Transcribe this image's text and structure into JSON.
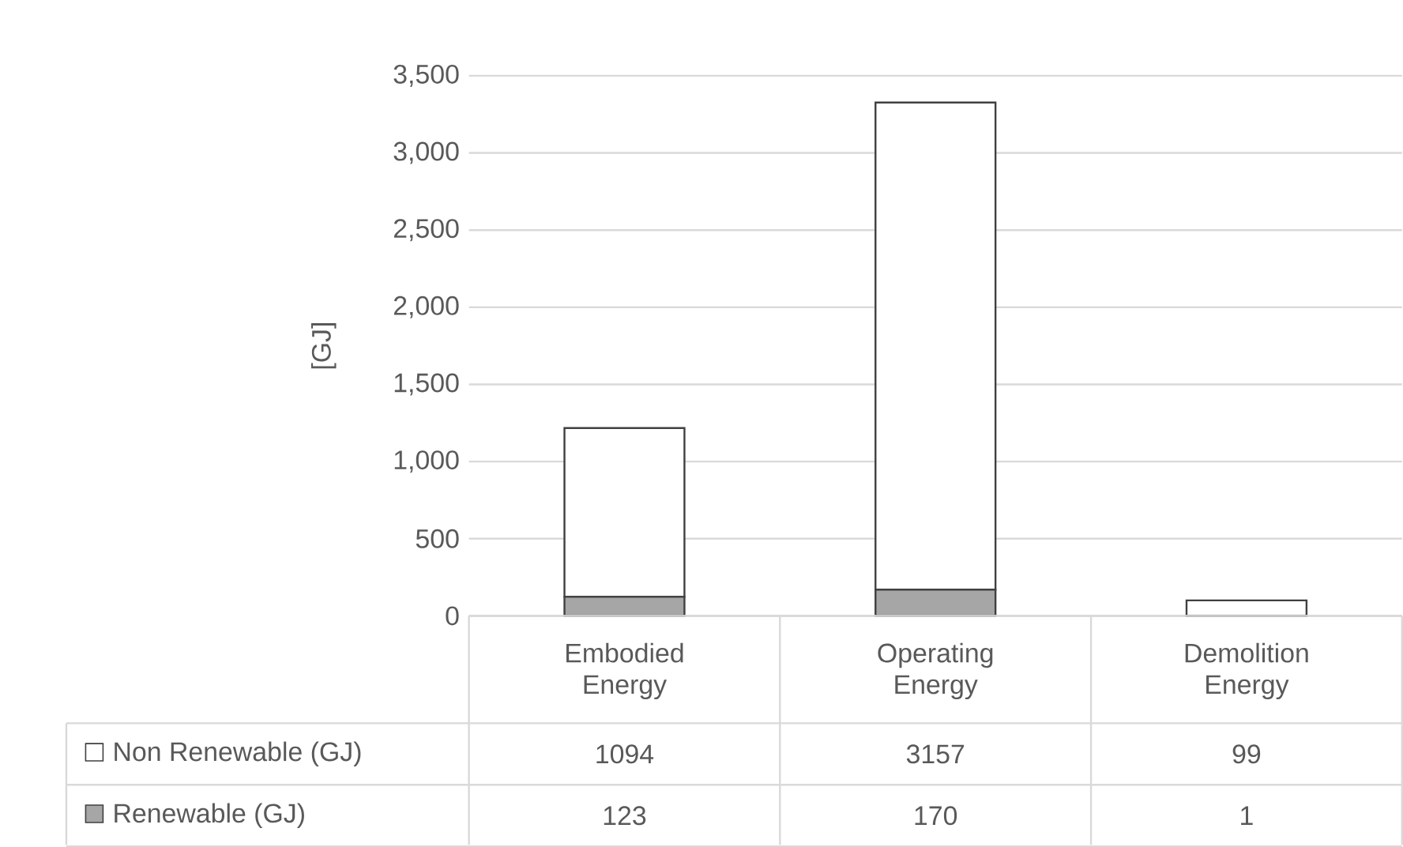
{
  "chart_data": {
    "type": "bar",
    "stacked": true,
    "ylabel": "[GJ]",
    "categories": [
      "Embodied Energy",
      "Operating Energy",
      "Demolition Energy"
    ],
    "series": [
      {
        "name": "Renewable (GJ)",
        "color": "#a6a6a6",
        "values": [
          123,
          170,
          1
        ]
      },
      {
        "name": "Non Renewable (GJ)",
        "color": "#ffffff",
        "values": [
          1094,
          3157,
          99
        ]
      }
    ],
    "ylim": [
      0,
      3500
    ],
    "yticks": [
      0,
      {
        "value": 500,
        "label": "500"
      },
      {
        "value": 1000,
        "label": "1,000"
      },
      {
        "value": 1500,
        "label": "1,500"
      },
      {
        "value": 2000,
        "label": "2,000"
      },
      {
        "value": 2500,
        "label": "2,500"
      },
      {
        "value": 3000,
        "label": "3,000"
      },
      {
        "value": 3500,
        "label": "3,500"
      }
    ],
    "grid": "y",
    "legend": "bottom",
    "data_labels": true
  }
}
